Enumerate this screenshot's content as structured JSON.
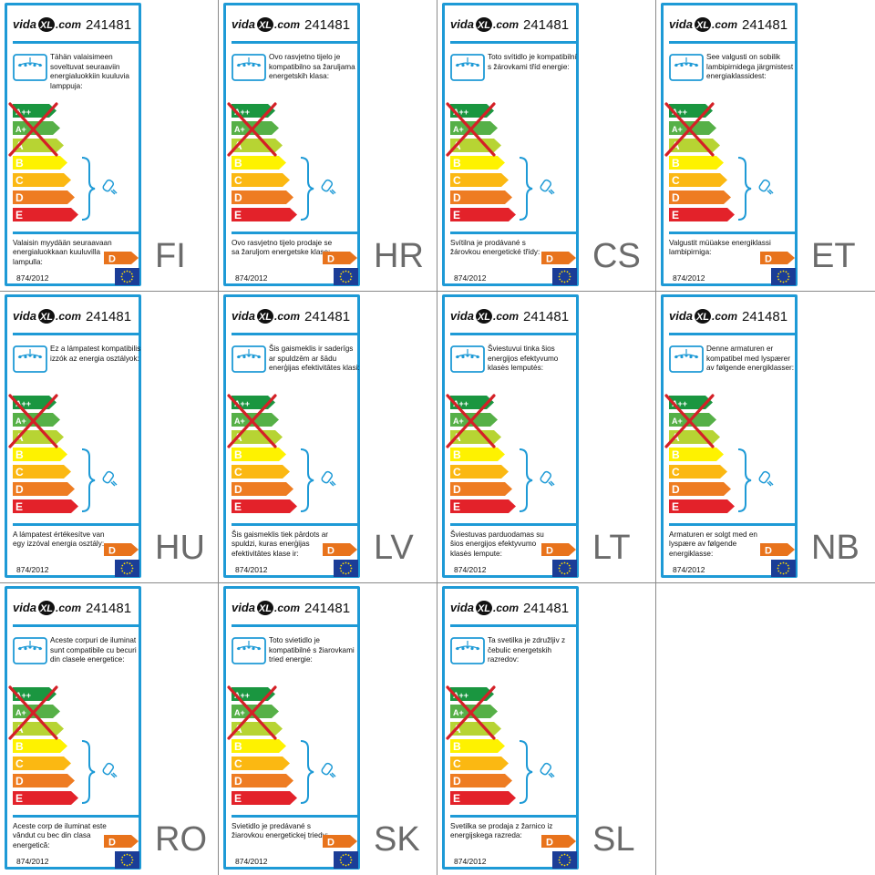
{
  "brand": {
    "text": "vidaXL.com",
    "prefix": "vida",
    "mark": "XL",
    "suffix": ".com"
  },
  "model": "241481",
  "regulation": "874/2012",
  "energy_classes": [
    "A++",
    "A+",
    "A",
    "B",
    "C",
    "D",
    "E"
  ],
  "excluded_classes": [
    "A++",
    "A+",
    "A"
  ],
  "tag_class": "D",
  "icons": {
    "lamp": "ceiling-lamp-icon",
    "bulb": "halogen-bulb-icon",
    "eu": "eu-flag-icon",
    "cross": "red-cross-icon"
  },
  "colors": {
    "frame": "#1e9ad6",
    "cross": "#d42027",
    "tag": "#e8731c",
    "code": "#6b6b6b",
    "eu": "#1b3d97"
  },
  "labels": [
    {
      "code": "FI",
      "top_text": "Tähän valaisimeen soveltuvat seuraaviin energialuokkiin kuuluvia lamppuja:",
      "bottom_text": "Valaisin myydään seuraavaan energialuokkaan kuuluvilla lampulla:"
    },
    {
      "code": "HR",
      "top_text": "Ovo rasvjetno tijelo je kompatibilno sa žaruljama energetskih klasa:",
      "bottom_text": "Ovo rasvjetno tijelo prodaje se sa žaruljom energetske klase:"
    },
    {
      "code": "CS",
      "top_text": "Toto svítidlo je kompatibilní s žárovkami tříd energie:",
      "bottom_text": "Svítilna je prodávané s žárovkou energetické třídy:"
    },
    {
      "code": "ET",
      "top_text": "See valgusti on sobilik lambipirnidega järgmistest energiaklassidest:",
      "bottom_text": "Valgustit müüakse energiklassi lambipirniga:"
    },
    {
      "code": "HU",
      "top_text": "Ez a lámpatest kompatibilis izzók az energia osztályok:",
      "bottom_text": "A lámpatest értékesítve van egy izzóval energia osztály:"
    },
    {
      "code": "LV",
      "top_text": "Šis gaismeklis ir saderīgs ar spuldzēm ar šādu enerģijas efektivitātes klasi:",
      "bottom_text": "Šis gaismeklis tiek pārdots ar spuldzi, kuras enerģijas efektivitātes klase ir:"
    },
    {
      "code": "LT",
      "top_text": "Šviestuvui tinka šios energijos efektyvumo klasės lemputės:",
      "bottom_text": "Šviestuvas parduodamas su šios energijos efektyvumo klasės lempute:"
    },
    {
      "code": "NB",
      "top_text": "Denne armaturen er kompatibel med lyspærer av følgende energiklasser:",
      "bottom_text": "Armaturen er solgt med en lyspære av følgende energiklasse:"
    },
    {
      "code": "RO",
      "top_text": "Aceste corpuri de iluminat sunt compatibile cu becuri din clasele energetice:",
      "bottom_text": "Aceste corp de iluminat este vândut cu bec din clasa energetică:"
    },
    {
      "code": "SK",
      "top_text": "Toto svietidlo je kompatibilné s žiarovkami tried energie:",
      "bottom_text": "Svietidlo je predávané s žiarovkou energetickej triedy:"
    },
    {
      "code": "SL",
      "top_text": "Ta svetilka je združljiv z čebulic energetskih razredov:",
      "bottom_text": "Svetilka se prodaja z žarnico iz energijskega razreda:"
    }
  ]
}
